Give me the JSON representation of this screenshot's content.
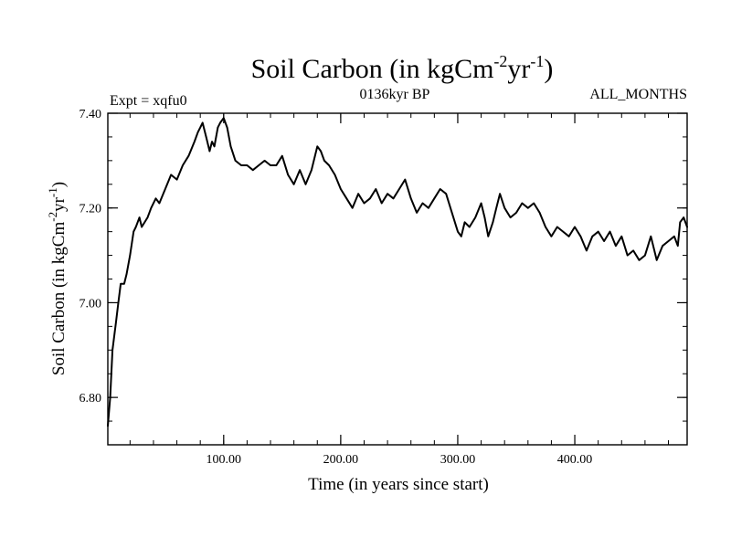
{
  "chart_data": {
    "type": "line",
    "title": {
      "main": "Soil Carbon (in kgCm",
      "sup1": "-2",
      "mid": "yr",
      "sup2": "-1",
      "end": ")"
    },
    "subtitle_left": "Expt = xqfu0",
    "subtitle_center": "0136kyr BP",
    "subtitle_right": "ALL_MONTHS",
    "xlabel": "Time (in years since start)",
    "ylabel": {
      "main": "Soil Carbon (in kgCm",
      "sup1": "-2",
      "mid": "yr",
      "sup2": "-1",
      "end": ")"
    },
    "xlim": [
      1,
      496
    ],
    "ylim": [
      6.7,
      7.4
    ],
    "xticks": [
      100,
      200,
      300,
      400
    ],
    "xtick_labels": [
      "100.00",
      "200.00",
      "300.00",
      "400.00"
    ],
    "yticks": [
      6.8,
      7.0,
      7.2,
      7.4
    ],
    "ytick_labels": [
      "6.80",
      "7.00",
      "7.20",
      "7.40"
    ],
    "x_minor_step": 20,
    "y_minor_step": 0.05,
    "series": [
      {
        "name": "Soil Carbon",
        "color": "#000000",
        "x": [
          1,
          3,
          5,
          8,
          10,
          12,
          15,
          17,
          20,
          23,
          25,
          28,
          30,
          35,
          38,
          42,
          45,
          50,
          55,
          60,
          65,
          70,
          75,
          78,
          80,
          82,
          85,
          88,
          90,
          92,
          95,
          97,
          100,
          103,
          106,
          110,
          115,
          120,
          125,
          130,
          135,
          140,
          145,
          150,
          155,
          160,
          165,
          170,
          175,
          180,
          183,
          186,
          190,
          195,
          200,
          205,
          210,
          215,
          220,
          225,
          230,
          235,
          240,
          245,
          250,
          255,
          260,
          265,
          270,
          275,
          280,
          285,
          290,
          295,
          300,
          303,
          306,
          310,
          315,
          320,
          323,
          326,
          330,
          333,
          336,
          340,
          345,
          350,
          355,
          360,
          365,
          370,
          375,
          380,
          385,
          390,
          395,
          400,
          405,
          410,
          415,
          420,
          425,
          430,
          435,
          440,
          445,
          450,
          455,
          460,
          465,
          470,
          475,
          480,
          485,
          488,
          490,
          493,
          496
        ],
        "y": [
          6.74,
          6.8,
          6.9,
          6.96,
          7.0,
          7.04,
          7.04,
          7.06,
          7.1,
          7.15,
          7.16,
          7.18,
          7.16,
          7.18,
          7.2,
          7.22,
          7.21,
          7.24,
          7.27,
          7.26,
          7.29,
          7.31,
          7.34,
          7.36,
          7.37,
          7.38,
          7.35,
          7.32,
          7.34,
          7.33,
          7.37,
          7.38,
          7.39,
          7.37,
          7.33,
          7.3,
          7.29,
          7.29,
          7.28,
          7.29,
          7.3,
          7.29,
          7.29,
          7.31,
          7.27,
          7.25,
          7.28,
          7.25,
          7.28,
          7.33,
          7.32,
          7.3,
          7.29,
          7.27,
          7.24,
          7.22,
          7.2,
          7.23,
          7.21,
          7.22,
          7.24,
          7.21,
          7.23,
          7.22,
          7.24,
          7.26,
          7.22,
          7.19,
          7.21,
          7.2,
          7.22,
          7.24,
          7.23,
          7.19,
          7.15,
          7.14,
          7.17,
          7.16,
          7.18,
          7.21,
          7.18,
          7.14,
          7.17,
          7.2,
          7.23,
          7.2,
          7.18,
          7.19,
          7.21,
          7.2,
          7.21,
          7.19,
          7.16,
          7.14,
          7.16,
          7.15,
          7.14,
          7.16,
          7.14,
          7.11,
          7.14,
          7.15,
          7.13,
          7.15,
          7.12,
          7.14,
          7.1,
          7.11,
          7.09,
          7.1,
          7.14,
          7.09,
          7.12,
          7.13,
          7.14,
          7.12,
          7.17,
          7.18,
          7.16
        ]
      }
    ]
  }
}
